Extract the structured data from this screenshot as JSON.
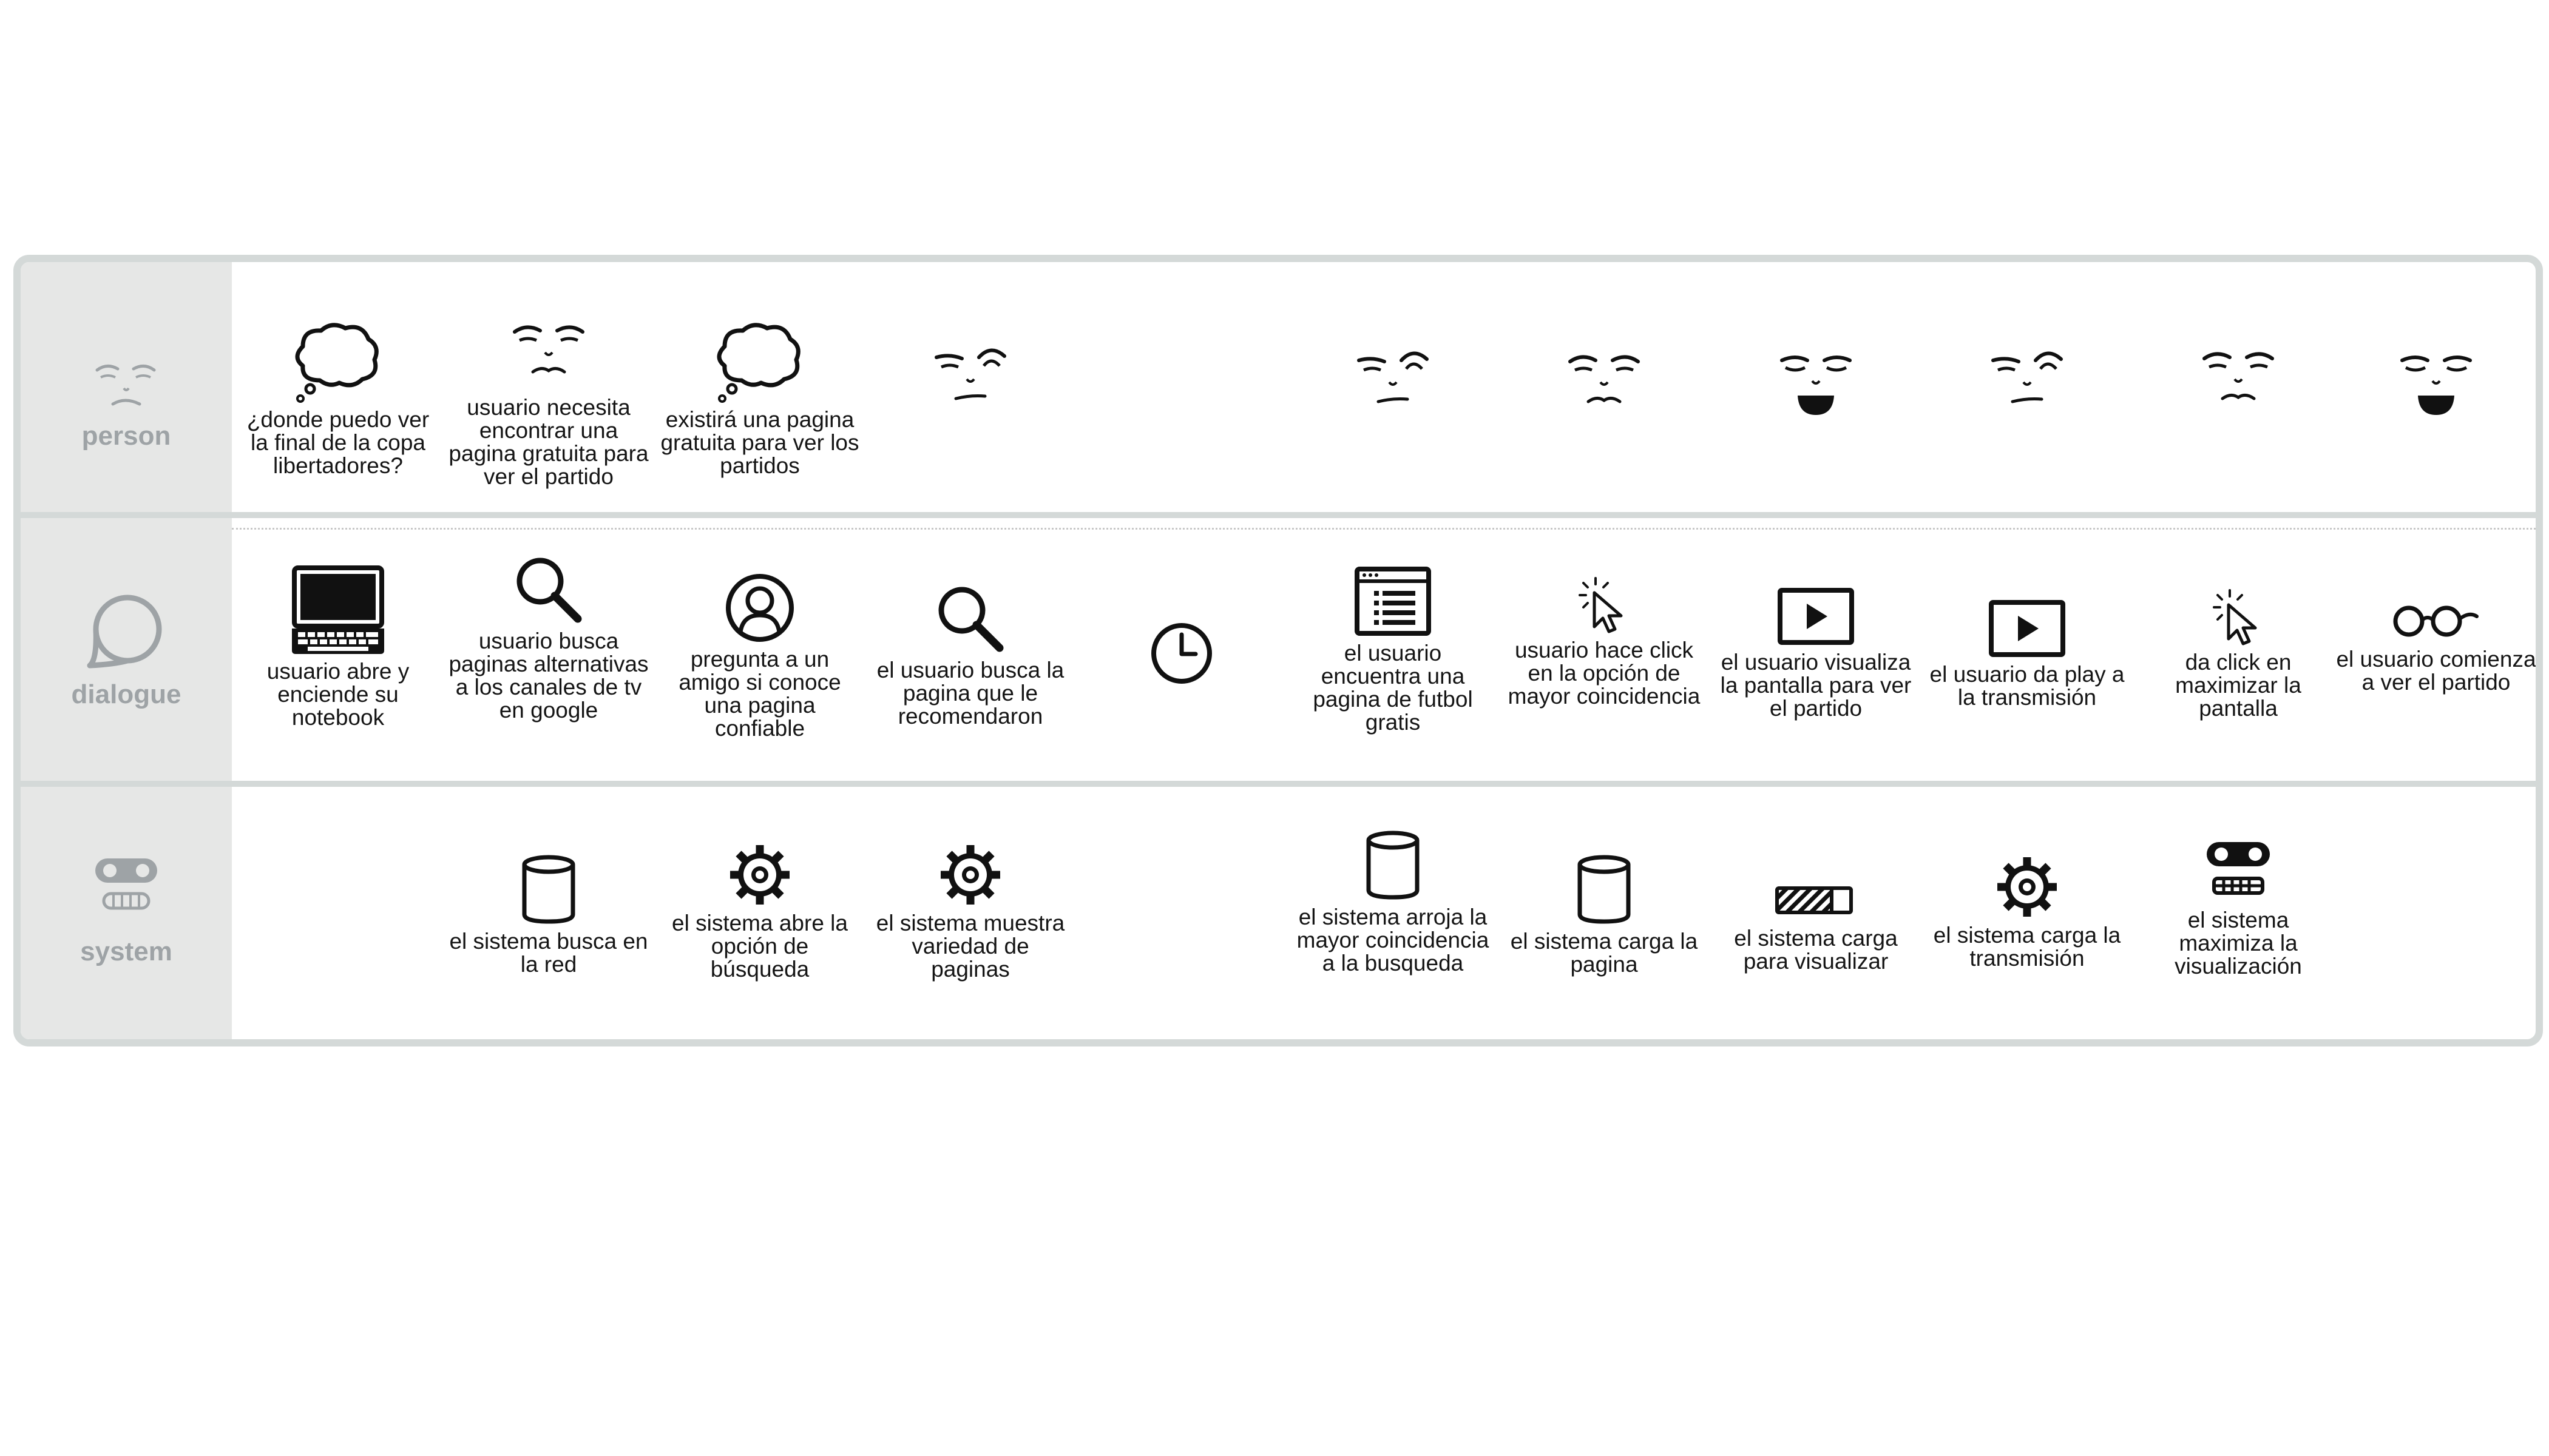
{
  "rows": {
    "person": "person",
    "dialogue": "dialogue",
    "system": "system"
  },
  "person_row": [
    {
      "icon": "thought-bubble-icon",
      "text": "¿donde puedo ver la final de la copa libertadores?"
    },
    {
      "icon": "neutral-face-icon",
      "text": "usuario necesita encontrar una pagina gratuita para ver el partido"
    },
    {
      "icon": "thought-bubble-icon",
      "text": "existirá una pagina gratuita para ver los partidos"
    },
    {
      "icon": "skeptical-face-icon",
      "text": ""
    },
    {
      "icon": "skeptical-face-icon",
      "text": ""
    },
    {
      "icon": "neutral-face-icon",
      "text": ""
    },
    {
      "icon": "happy-face-icon",
      "text": ""
    },
    {
      "icon": "skeptical-face-icon",
      "text": ""
    },
    {
      "icon": "neutral-face-icon",
      "text": ""
    },
    {
      "icon": "happy-face-icon",
      "text": ""
    }
  ],
  "dialogue_row": [
    {
      "icon": "laptop-icon",
      "text": "usuario abre y enciende su notebook"
    },
    {
      "icon": "search-icon",
      "text": "usuario busca paginas alternativas a los canales de tv en google"
    },
    {
      "icon": "user-circle-icon",
      "text": "pregunta a un amigo si conoce una pagina confiable"
    },
    {
      "icon": "search-icon",
      "text": "el usuario busca la pagina que le recomendaron"
    },
    {
      "icon": "clock-icon",
      "text": ""
    },
    {
      "icon": "browser-list-icon",
      "text": "el usuario encuentra una pagina de futbol gratis"
    },
    {
      "icon": "cursor-click-icon",
      "text": "usuario hace click en la opción de mayor coincidencia"
    },
    {
      "icon": "play-icon",
      "text": "el usuario visualiza la pantalla para ver el partido"
    },
    {
      "icon": "play-icon",
      "text": "el usuario da play a la transmisión"
    },
    {
      "icon": "cursor-click-icon",
      "text": "da click en maximizar la pantalla"
    },
    {
      "icon": "glasses-icon",
      "text": "el usuario comienza a ver el partido"
    }
  ],
  "system_row": [
    {
      "icon": "database-icon",
      "text": "el sistema busca en la red"
    },
    {
      "icon": "gear-icon",
      "text": "el sistema abre la opción de búsqueda"
    },
    {
      "icon": "gear-icon",
      "text": "el sistema muestra variedad de paginas"
    },
    {
      "icon": "database-icon",
      "text": "el sistema arroja la mayor coincidencia a la busqueda"
    },
    {
      "icon": "database-icon",
      "text": "el sistema carga la pagina"
    },
    {
      "icon": "loading-bar-icon",
      "text": "el sistema carga para visualizar"
    },
    {
      "icon": "gear-icon",
      "text": "el sistema carga la transmisión"
    },
    {
      "icon": "robot-icon",
      "text": "el sistema maximiza la visualización"
    }
  ]
}
